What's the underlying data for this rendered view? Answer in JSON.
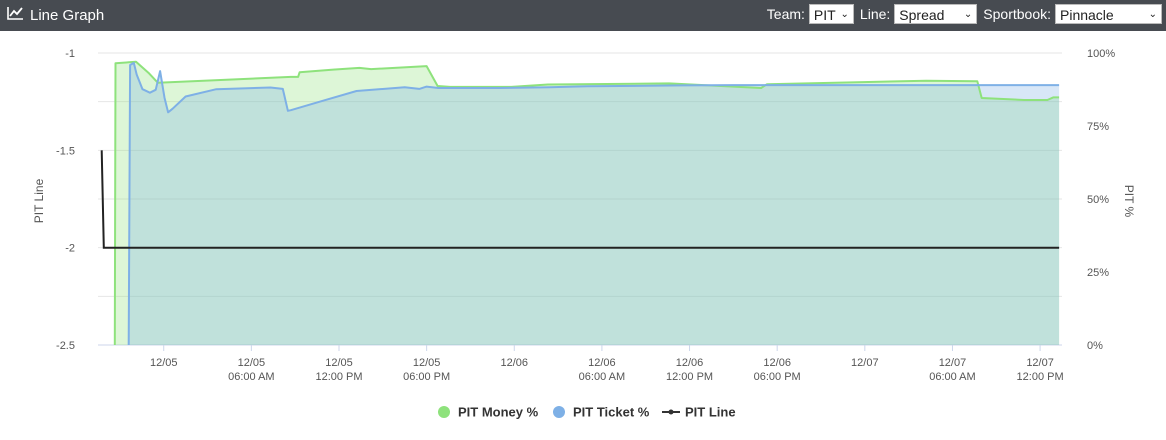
{
  "header": {
    "title": "Line Graph",
    "team_label": "Team:",
    "team_value": "PIT",
    "line_label": "Line:",
    "line_value": "Spread",
    "sportbook_label": "Sportbook:",
    "sportbook_value": "Pinnacle"
  },
  "colors": {
    "header_bg": "#474b51",
    "money": "#8ee27c",
    "ticket": "#7eb0e6",
    "line": "#222222"
  },
  "chart_data": {
    "type": "line",
    "ylabel_left": "PIT Line",
    "ylabel_right": "PIT %",
    "y_left_ticks": [
      "-1",
      "-1.5",
      "-2",
      "-2.5"
    ],
    "y_left_range": [
      -2.5,
      -1
    ],
    "y_right_ticks": [
      "100%",
      "75%",
      "50%",
      "25%",
      "0%"
    ],
    "y_right_range": [
      0,
      100
    ],
    "x_ticks": [
      {
        "label": "12/05",
        "sub": "",
        "t": 0
      },
      {
        "label": "12/05",
        "sub": "06:00 AM",
        "t": 6
      },
      {
        "label": "12/05",
        "sub": "12:00 PM",
        "t": 12
      },
      {
        "label": "12/05",
        "sub": "06:00 PM",
        "t": 18
      },
      {
        "label": "12/06",
        "sub": "",
        "t": 24
      },
      {
        "label": "12/06",
        "sub": "06:00 AM",
        "t": 30
      },
      {
        "label": "12/06",
        "sub": "12:00 PM",
        "t": 36
      },
      {
        "label": "12/06",
        "sub": "06:00 PM",
        "t": 42
      },
      {
        "label": "12/07",
        "sub": "",
        "t": 48
      },
      {
        "label": "12/07",
        "sub": "06:00 AM",
        "t": 54
      },
      {
        "label": "12/07",
        "sub": "12:00 PM",
        "t": 60
      }
    ],
    "series": [
      {
        "name": "PIT Money %",
        "axis": "right",
        "points": [
          [
            -3.35,
            0
          ],
          [
            -3.3,
            96.5
          ],
          [
            -1.9,
            97
          ],
          [
            -1.0,
            93
          ],
          [
            -0.4,
            89.8
          ],
          [
            8.7,
            91.8
          ],
          [
            9.2,
            91.8
          ],
          [
            9.3,
            93.4
          ],
          [
            11.6,
            94.3
          ],
          [
            13.4,
            94.9
          ],
          [
            14.2,
            94.5
          ],
          [
            18.0,
            95.5
          ],
          [
            18.75,
            88.7
          ],
          [
            19.6,
            88.4
          ],
          [
            23.8,
            88.4
          ],
          [
            26.3,
            89.2
          ],
          [
            34.6,
            89.6
          ],
          [
            39.0,
            88.5
          ],
          [
            40.9,
            88.0
          ],
          [
            41.3,
            89.3
          ],
          [
            47.5,
            90.0
          ],
          [
            52.2,
            90.5
          ],
          [
            55.7,
            90.3
          ],
          [
            56.0,
            84.6
          ],
          [
            58.9,
            83.9
          ],
          [
            60.5,
            83.9
          ],
          [
            60.9,
            84.8
          ],
          [
            61.3,
            84.8
          ]
        ]
      },
      {
        "name": "PIT Ticket %",
        "axis": "right",
        "points": [
          [
            -2.4,
            0
          ],
          [
            -2.3,
            95.9
          ],
          [
            -2.05,
            96.6
          ],
          [
            -1.85,
            92.6
          ],
          [
            -1.45,
            87.6
          ],
          [
            -0.95,
            86.4
          ],
          [
            -0.55,
            87.4
          ],
          [
            -0.25,
            93.8
          ],
          [
            0.05,
            84.7
          ],
          [
            0.3,
            79.7
          ],
          [
            0.6,
            80.9
          ],
          [
            1.5,
            85.1
          ],
          [
            3.6,
            87.6
          ],
          [
            7.3,
            88.2
          ],
          [
            8.15,
            87.7
          ],
          [
            8.5,
            80.2
          ],
          [
            8.7,
            80.4
          ],
          [
            11.0,
            83.8
          ],
          [
            13.2,
            87.0
          ],
          [
            16.5,
            88.3
          ],
          [
            17.5,
            87.7
          ],
          [
            18.0,
            88.5
          ],
          [
            18.8,
            88.0
          ],
          [
            23.0,
            88.0
          ],
          [
            26.4,
            88.3
          ],
          [
            29.0,
            88.6
          ],
          [
            35.5,
            88.9
          ],
          [
            39.0,
            89.0
          ],
          [
            55.7,
            89.0
          ],
          [
            61.3,
            89.0
          ]
        ]
      },
      {
        "name": "PIT Line",
        "axis": "left",
        "points": [
          [
            -4.25,
            -1.5
          ],
          [
            -4.1,
            -2.0
          ],
          [
            61.3,
            -2.0
          ]
        ]
      }
    ],
    "grid": true,
    "legend_position": "bottom-center"
  },
  "legend": {
    "money_label": "PIT Money %",
    "ticket_label": "PIT Ticket %",
    "line_label": "PIT Line"
  }
}
